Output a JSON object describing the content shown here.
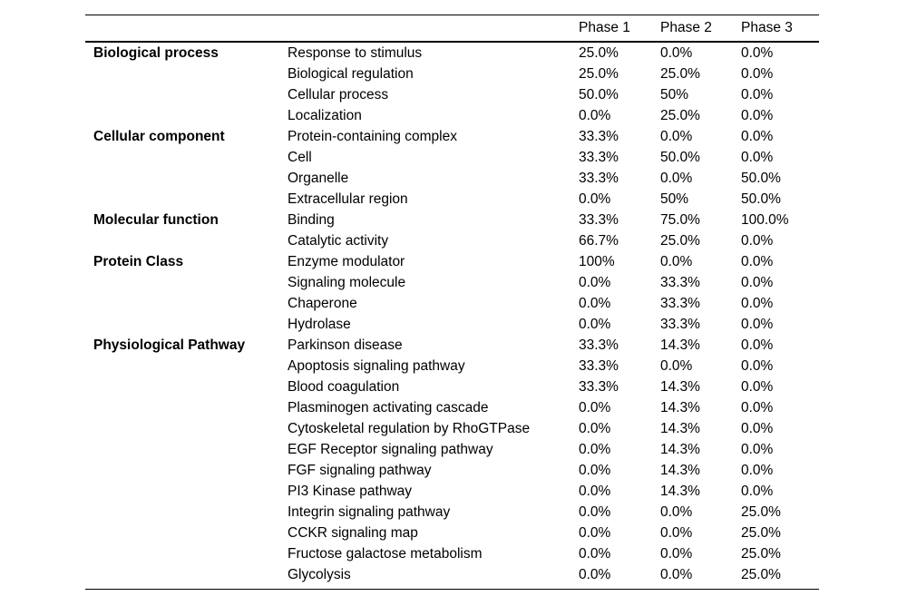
{
  "table": {
    "header": {
      "phase1": "Phase 1",
      "phase2": "Phase 2",
      "phase3": "Phase 3"
    },
    "groups": [
      {
        "category": "Biological process",
        "rows": [
          {
            "label": "Response to stimulus",
            "phase1": "25.0%",
            "phase2": "0.0%",
            "phase3": "0.0%"
          },
          {
            "label": "Biological regulation",
            "phase1": "25.0%",
            "phase2": "25.0%",
            "phase3": "0.0%"
          },
          {
            "label": "Cellular process",
            "phase1": "50.0%",
            "phase2": "50%",
            "phase3": "0.0%"
          },
          {
            "label": "Localization",
            "phase1": "0.0%",
            "phase2": "25.0%",
            "phase3": "0.0%"
          }
        ]
      },
      {
        "category": "Cellular component",
        "rows": [
          {
            "label": "Protein-containing complex",
            "phase1": "33.3%",
            "phase2": "0.0%",
            "phase3": "0.0%"
          },
          {
            "label": "Cell",
            "phase1": "33.3%",
            "phase2": "50.0%",
            "phase3": "0.0%"
          },
          {
            "label": "Organelle",
            "phase1": "33.3%",
            "phase2": "0.0%",
            "phase3": "50.0%"
          },
          {
            "label": "Extracellular region",
            "phase1": "0.0%",
            "phase2": "50%",
            "phase3": "50.0%"
          }
        ]
      },
      {
        "category": "Molecular function",
        "rows": [
          {
            "label": "Binding",
            "phase1": "33.3%",
            "phase2": "75.0%",
            "phase3": "100.0%"
          },
          {
            "label": "Catalytic activity",
            "phase1": "66.7%",
            "phase2": "25.0%",
            "phase3": "0.0%"
          }
        ]
      },
      {
        "category": "Protein Class",
        "rows": [
          {
            "label": "Enzyme modulator",
            "phase1": "100%",
            "phase2": "0.0%",
            "phase3": "0.0%"
          },
          {
            "label": "Signaling molecule",
            "phase1": "0.0%",
            "phase2": "33.3%",
            "phase3": "0.0%"
          },
          {
            "label": "Chaperone",
            "phase1": "0.0%",
            "phase2": "33.3%",
            "phase3": "0.0%"
          },
          {
            "label": "Hydrolase",
            "phase1": "0.0%",
            "phase2": "33.3%",
            "phase3": "0.0%"
          }
        ]
      },
      {
        "category": "Physiological Pathway",
        "rows": [
          {
            "label": "Parkinson disease",
            "phase1": "33.3%",
            "phase2": "14.3%",
            "phase3": "0.0%"
          },
          {
            "label": "Apoptosis signaling pathway",
            "phase1": "33.3%",
            "phase2": "0.0%",
            "phase3": "0.0%"
          },
          {
            "label": "Blood coagulation",
            "phase1": "33.3%",
            "phase2": "14.3%",
            "phase3": "0.0%"
          },
          {
            "label": "Plasminogen activating cascade",
            "phase1": "0.0%",
            "phase2": "14.3%",
            "phase3": "0.0%"
          },
          {
            "label": "Cytoskeletal regulation by RhoGTPase",
            "phase1": "0.0%",
            "phase2": "14.3%",
            "phase3": "0.0%"
          },
          {
            "label": "EGF Receptor signaling pathway",
            "phase1": "0.0%",
            "phase2": "14.3%",
            "phase3": "0.0%"
          },
          {
            "label": "FGF signaling pathway",
            "phase1": "0.0%",
            "phase2": "14.3%",
            "phase3": "0.0%"
          },
          {
            "label": "PI3 Kinase pathway",
            "phase1": "0.0%",
            "phase2": "14.3%",
            "phase3": "0.0%"
          },
          {
            "label": "Integrin signaling pathway",
            "phase1": "0.0%",
            "phase2": "0.0%",
            "phase3": "25.0%"
          },
          {
            "label": "CCKR signaling map",
            "phase1": "0.0%",
            "phase2": "0.0%",
            "phase3": "25.0%"
          },
          {
            "label": "Fructose galactose metabolism",
            "phase1": "0.0%",
            "phase2": "0.0%",
            "phase3": "25.0%"
          },
          {
            "label": "Glycolysis",
            "phase1": "0.0%",
            "phase2": "0.0%",
            "phase3": "25.0%"
          }
        ]
      }
    ]
  }
}
